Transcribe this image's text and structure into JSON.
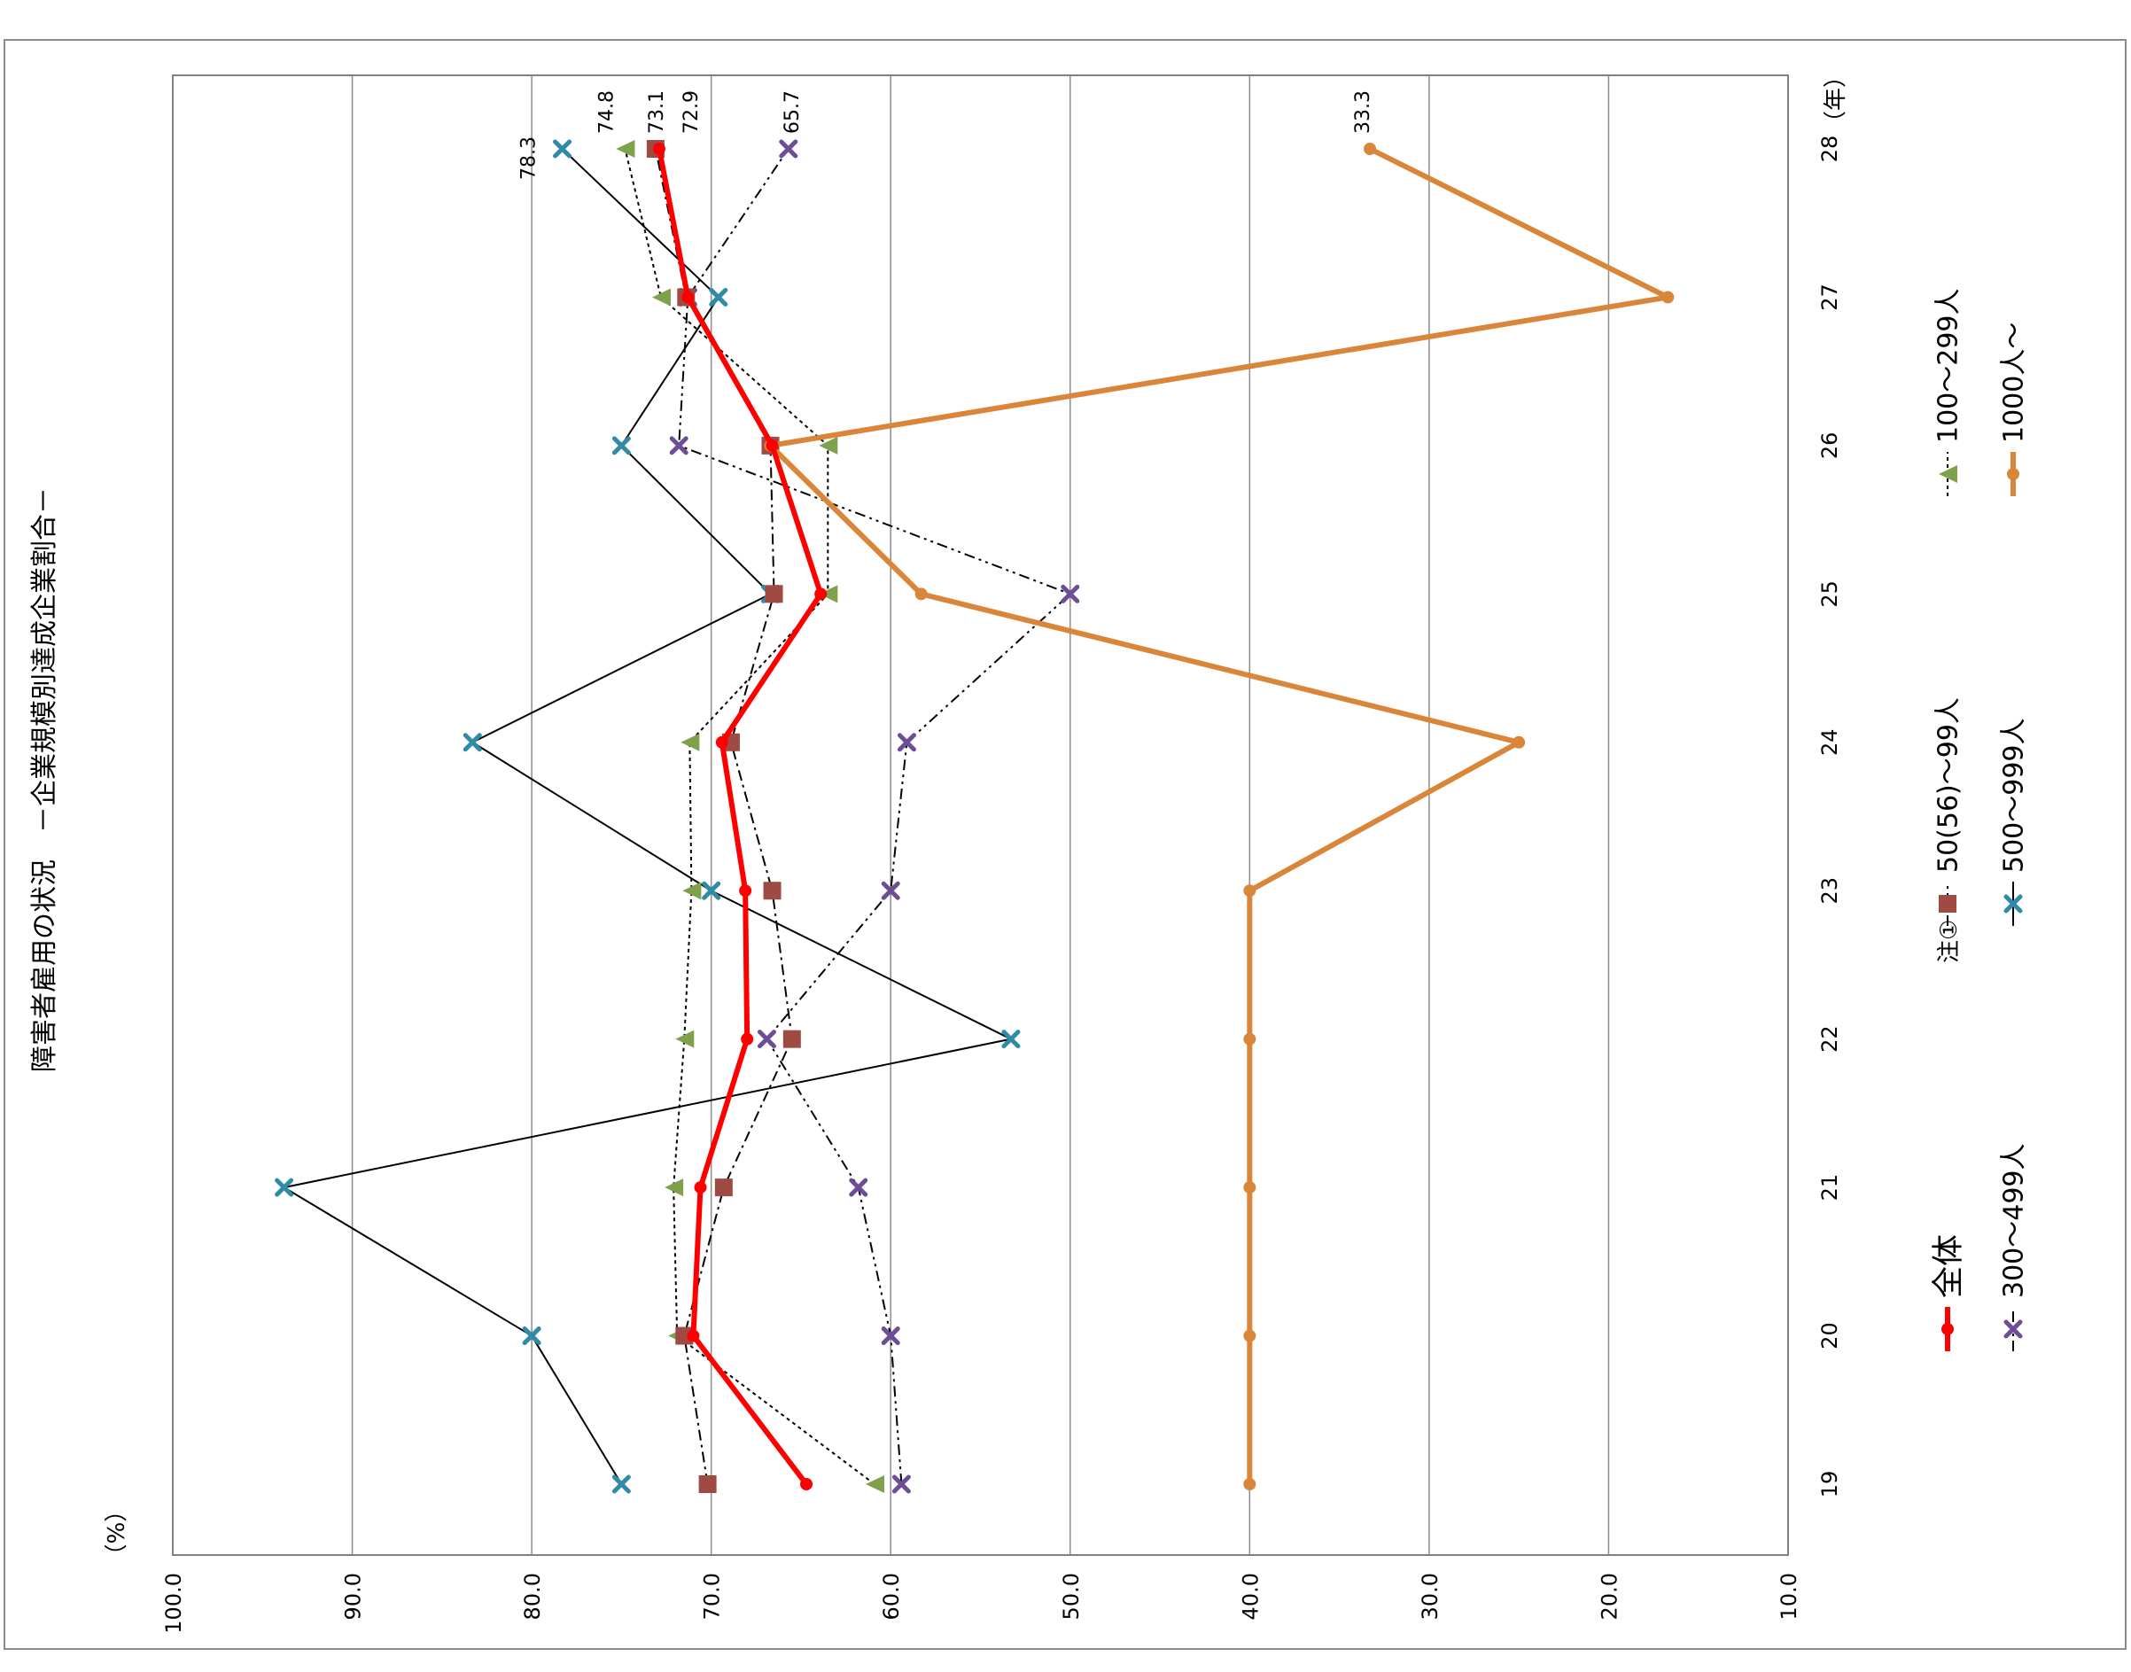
{
  "chart_data": {
    "type": "line",
    "title": "障害者雇用の状況　－企業規模別達成企業割合－",
    "ylabel": "（%）",
    "xlabel": "（年）",
    "ylim": [
      10,
      100
    ],
    "y_ticks": [
      "100.0",
      "90.0",
      "80.0",
      "70.0",
      "60.0",
      "50.0",
      "40.0",
      "30.0",
      "20.0",
      "10.0"
    ],
    "categories": [
      "19",
      "20",
      "21",
      "22",
      "23",
      "24",
      "25",
      "26",
      "27",
      "28"
    ],
    "grid": true,
    "legend_position": "right",
    "series": [
      {
        "name": "全体",
        "color": "#ff0000",
        "line": "solid-thick",
        "marker": "circle",
        "values": [
          64.7,
          71.0,
          70.6,
          68.0,
          68.1,
          69.4,
          63.9,
          66.6,
          71.3,
          72.9
        ]
      },
      {
        "name": "50(56)～99人",
        "color": "#a04a44",
        "line": "dashdot",
        "marker": "square",
        "values": [
          70.2,
          71.5,
          69.3,
          65.5,
          66.6,
          68.9,
          66.5,
          66.7,
          71.4,
          73.1
        ]
      },
      {
        "name": "100～299人",
        "color": "#7fa14c",
        "line": "dotted",
        "marker": "triangle",
        "values": [
          60.9,
          71.9,
          72.1,
          71.5,
          71.1,
          71.2,
          63.5,
          63.5,
          72.8,
          74.8
        ]
      },
      {
        "name": "300～499人",
        "color": "#6d4d96",
        "line": "dashdotdot",
        "marker": "x",
        "values": [
          59.4,
          60.0,
          61.8,
          66.9,
          60.0,
          59.1,
          50.0,
          71.8,
          71.3,
          65.7
        ]
      },
      {
        "name": "500～999人",
        "color": "#2f8ba6",
        "line": "solid-thin",
        "marker": "x",
        "values": [
          75.0,
          80.0,
          93.8,
          53.3,
          70.0,
          83.3,
          66.7,
          75.0,
          69.6,
          78.3
        ]
      },
      {
        "name": "1000人～",
        "color": "#d9863a",
        "line": "solid-thick",
        "marker": "circle",
        "values": [
          40.0,
          40.0,
          40.0,
          40.0,
          40.0,
          25.0,
          58.3,
          66.7,
          16.7,
          33.3
        ]
      }
    ],
    "data_labels": [
      {
        "text": "78.3",
        "series": "500～999人",
        "category": "28"
      },
      {
        "text": "74.8",
        "series": "100～299人",
        "category": "28"
      },
      {
        "text": "73.1",
        "series": "50(56)～99人",
        "category": "28"
      },
      {
        "text": "72.9",
        "series": "全体",
        "category": "28"
      },
      {
        "text": "65.7",
        "series": "300～499人",
        "category": "28"
      },
      {
        "text": "33.3",
        "series": "1000人～",
        "category": "28"
      }
    ],
    "legend": [
      {
        "label": "全体",
        "series": "全体"
      },
      {
        "label": "50(56)～99人",
        "series": "50(56)～99人",
        "prefix": "注①"
      },
      {
        "label": "100～299人",
        "series": "100～299人"
      },
      {
        "label": "300～499人",
        "series": "300～499人"
      },
      {
        "label": "500～999人",
        "series": "500～999人"
      },
      {
        "label": "1000人～",
        "series": "1000人～"
      }
    ]
  }
}
